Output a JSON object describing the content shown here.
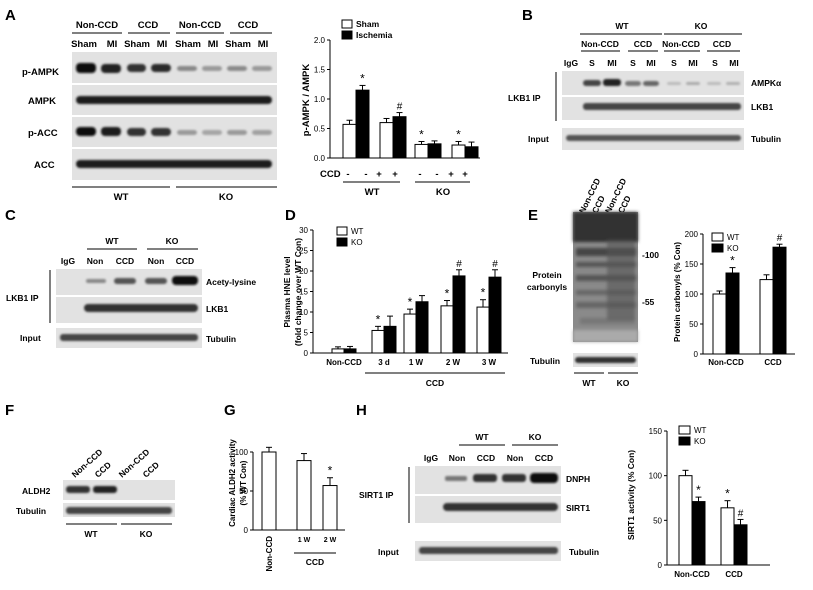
{
  "panels": {
    "A": {
      "label": "A",
      "col_groups": [
        "Non-CCD",
        "CCD",
        "Non-CCD",
        "CCD"
      ],
      "lanes": [
        "Sham",
        "MI",
        "Sham",
        "MI",
        "Sham",
        "MI",
        "Sham",
        "MI"
      ],
      "rows": [
        "p-AMPK",
        "AMPK",
        "p-ACC",
        "ACC"
      ],
      "genotypes": [
        "WT",
        "KO"
      ]
    },
    "B": {
      "label": "B",
      "genotypes": [
        "WT",
        "KO"
      ],
      "col_groups": [
        "Non-CCD",
        "CCD",
        "Non-CCD",
        "CCD"
      ],
      "lanes": [
        "IgG",
        "S",
        "MI",
        "S",
        "MI",
        "S",
        "MI",
        "S",
        "MI"
      ],
      "ip_label": "LKB1 IP",
      "input_label": "Input",
      "rows": [
        "AMPKα",
        "LKB1",
        "Tubulin"
      ]
    },
    "C": {
      "label": "C",
      "genotypes": [
        "WT",
        "KO"
      ],
      "lanes": [
        "IgG",
        "Non",
        "CCD",
        "Non",
        "CCD"
      ],
      "ip_label": "LKB1 IP",
      "input_label": "Input",
      "rows": [
        "Acety-lysine",
        "LKB1",
        "Tubulin"
      ]
    },
    "E": {
      "label": "E",
      "lanes": [
        "Non-CCD",
        "CCD",
        "Non-CCD",
        "CCD"
      ],
      "mw": [
        "-100",
        "-55"
      ],
      "protein_label": [
        "Protein",
        "carbonyls"
      ],
      "tubulin_label": "Tubulin",
      "genotypes": [
        "WT",
        "KO"
      ]
    },
    "F": {
      "label": "F",
      "lanes": [
        "Non-CCD",
        "CCD",
        "Non-CCD",
        "CCD"
      ],
      "rows": [
        "ALDH2",
        "Tubulin"
      ],
      "genotypes": [
        "WT",
        "KO"
      ]
    },
    "H": {
      "label": "H",
      "genotypes": [
        "WT",
        "KO"
      ],
      "lanes": [
        "IgG",
        "Non",
        "CCD",
        "Non",
        "CCD"
      ],
      "ip_label": "SIRT1 IP",
      "input_label": "Input",
      "rows": [
        "DNPH",
        "SIRT1",
        "Tubulin"
      ]
    }
  },
  "chart_data": [
    {
      "id": "A",
      "type": "bar",
      "ylabel": "p-AMPK / AMPK",
      "ylim": [
        0,
        2.0
      ],
      "yticks": [
        "0.0",
        "0.5",
        "1.0",
        "1.5",
        "2.0"
      ],
      "series": [
        {
          "name": "Sham",
          "color": "#ffffff",
          "values": [
            0.57,
            0.6,
            0.23,
            0.22
          ]
        },
        {
          "name": "Ischemia",
          "color": "#000000",
          "values": [
            1.15,
            0.7,
            0.24,
            0.19
          ]
        }
      ],
      "errors": [
        [
          0.07,
          0.07,
          0.05,
          0.06
        ],
        [
          0.08,
          0.07,
          0.05,
          0.08
        ]
      ],
      "markers": [
        [
          "",
          "",
          "*",
          "*"
        ],
        [
          "*",
          "#",
          "",
          ""
        ]
      ],
      "ccd_label": "CCD",
      "ccd_signs": [
        "-",
        "-",
        "+",
        "+",
        "-",
        "-",
        "+",
        "+"
      ],
      "groups": [
        "WT",
        "KO"
      ]
    },
    {
      "id": "D",
      "type": "bar",
      "ylabel": [
        "Plasma HNE level",
        "(fold change over WT Con)"
      ],
      "ylim": [
        0,
        30
      ],
      "yticks": [
        "0",
        "5",
        "10",
        "15",
        "20",
        "25",
        "30"
      ],
      "categories": [
        "Non-CCD",
        "3 d",
        "1 W",
        "2 W",
        "3 W"
      ],
      "series": [
        {
          "name": "WT",
          "color": "#ffffff",
          "values": [
            1.0,
            5.5,
            9.5,
            11.5,
            11.2
          ]
        },
        {
          "name": "KO",
          "color": "#000000",
          "values": [
            1.0,
            6.5,
            12.5,
            18.8,
            18.5
          ]
        }
      ],
      "errors": [
        [
          0.5,
          1.0,
          1.2,
          1.3,
          1.8
        ],
        [
          0.6,
          2.5,
          1.5,
          1.5,
          1.8
        ]
      ],
      "markers": [
        [
          "",
          "*",
          "*",
          "*",
          "*"
        ],
        [
          "",
          "",
          "",
          "#",
          "#"
        ]
      ],
      "xlabel": "CCD"
    },
    {
      "id": "E",
      "type": "bar",
      "ylabel": "Protein carbonyls (% Con)",
      "ylim": [
        0,
        200
      ],
      "yticks": [
        "0",
        "50",
        "100",
        "150",
        "200"
      ],
      "categories": [
        "Non-CCD",
        "CCD"
      ],
      "series": [
        {
          "name": "WT",
          "color": "#ffffff",
          "values": [
            100,
            124
          ]
        },
        {
          "name": "KO",
          "color": "#000000",
          "values": [
            135,
            178
          ]
        }
      ],
      "errors": [
        [
          5,
          8
        ],
        [
          9,
          5
        ]
      ],
      "markers": [
        [
          "",
          ""
        ],
        [
          "*",
          "#"
        ]
      ],
      "legend_position": "top-left"
    },
    {
      "id": "G",
      "type": "bar",
      "ylabel": [
        "Cardiac ALDH2 activity",
        "(% WT Con)"
      ],
      "ylim": [
        0,
        100
      ],
      "yticks": [
        "0",
        "50",
        "100"
      ],
      "categories": [
        "Non-CCD",
        "1 W",
        "2 W"
      ],
      "values": [
        100,
        89,
        57
      ],
      "errors": [
        6,
        9,
        10
      ],
      "markers": [
        "",
        "",
        "*"
      ],
      "xlabel": "CCD"
    },
    {
      "id": "H",
      "type": "bar",
      "ylabel": "SIRT1 activity (% Con)",
      "ylim": [
        0,
        150
      ],
      "yticks": [
        "0",
        "50",
        "100",
        "150"
      ],
      "categories": [
        "Non-CCD",
        "CCD"
      ],
      "series": [
        {
          "name": "WT",
          "color": "#ffffff",
          "values": [
            100,
            64
          ]
        },
        {
          "name": "KO",
          "color": "#000000",
          "values": [
            71,
            45
          ]
        }
      ],
      "errors": [
        [
          6,
          8
        ],
        [
          5,
          6
        ]
      ],
      "markers": [
        [
          "",
          "*"
        ],
        [
          "*",
          "#"
        ]
      ],
      "legend_position": "top-right"
    }
  ]
}
